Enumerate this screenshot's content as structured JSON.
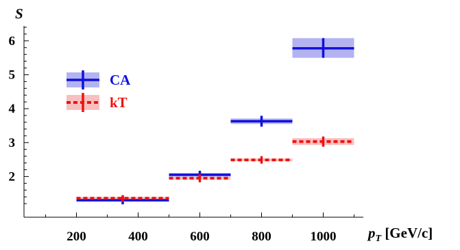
{
  "chart_data": {
    "type": "scatter",
    "ylabel_main": "S",
    "xlabel_main": "p",
    "xlabel_sub": "T",
    "xlabel_unit": " [GeV/c]",
    "xlim": [
      30,
      1130
    ],
    "ylim": [
      0.8,
      6.6
    ],
    "x_ticks": [
      {
        "value": 200,
        "label": "200"
      },
      {
        "value": 400,
        "label": "400"
      },
      {
        "value": 600,
        "label": "600"
      },
      {
        "value": 800,
        "label": "800"
      },
      {
        "value": 1000,
        "label": "1000"
      }
    ],
    "x_minor": [
      100,
      300,
      500,
      700,
      900,
      1100
    ],
    "y_ticks": [
      {
        "value": 2,
        "label": "2"
      },
      {
        "value": 3,
        "label": "3"
      },
      {
        "value": 4,
        "label": "4"
      },
      {
        "value": 5,
        "label": "5"
      },
      {
        "value": 6,
        "label": "6"
      }
    ],
    "legend": {
      "position": "top-left"
    },
    "series": [
      {
        "name": "CA",
        "color": "#1010dd",
        "band_color": "#9999ee",
        "dashed": false,
        "points": [
          {
            "x": 350,
            "xlo": 200,
            "xhi": 500,
            "y": 1.3,
            "ylo": 1.18,
            "yhi": 1.42,
            "band_lo": 1.26,
            "band_hi": 1.34
          },
          {
            "x": 600,
            "xlo": 500,
            "xhi": 700,
            "y": 2.05,
            "ylo": 1.93,
            "yhi": 2.17,
            "band_lo": 2.0,
            "band_hi": 2.1
          },
          {
            "x": 800,
            "xlo": 700,
            "xhi": 900,
            "y": 3.63,
            "ylo": 3.47,
            "yhi": 3.79,
            "band_lo": 3.55,
            "band_hi": 3.71
          },
          {
            "x": 1000,
            "xlo": 900,
            "xhi": 1100,
            "y": 5.78,
            "ylo": 5.5,
            "yhi": 6.08,
            "band_lo": 5.5,
            "band_hi": 6.08
          }
        ]
      },
      {
        "name": "kT",
        "color": "#ee1111",
        "band_color": "#f5aaaa",
        "dashed": true,
        "points": [
          {
            "x": 350,
            "xlo": 200,
            "xhi": 500,
            "y": 1.36,
            "ylo": 1.25,
            "yhi": 1.45,
            "band_lo": 1.32,
            "band_hi": 1.4
          },
          {
            "x": 600,
            "xlo": 500,
            "xhi": 700,
            "y": 1.95,
            "ylo": 1.83,
            "yhi": 2.07,
            "band_lo": 1.91,
            "band_hi": 1.99
          },
          {
            "x": 800,
            "xlo": 700,
            "xhi": 900,
            "y": 2.49,
            "ylo": 2.38,
            "yhi": 2.6,
            "band_lo": 2.45,
            "band_hi": 2.53
          },
          {
            "x": 1000,
            "xlo": 900,
            "xhi": 1100,
            "y": 3.03,
            "ylo": 2.88,
            "yhi": 3.18,
            "band_lo": 2.93,
            "band_hi": 3.13
          }
        ]
      }
    ]
  }
}
